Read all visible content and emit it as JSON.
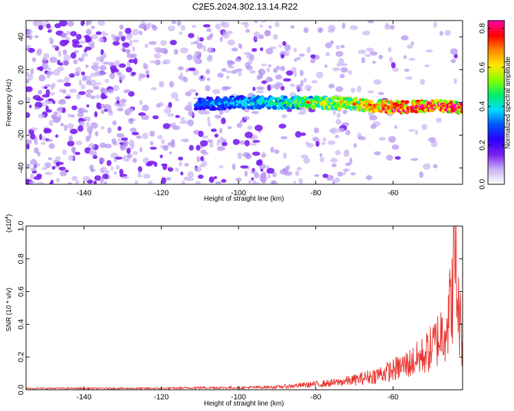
{
  "title": "C2E5.2024.302.13.14.R22",
  "chart_data": [
    {
      "type": "heatmap",
      "xlabel": "Height of straight line (km)",
      "ylabel": "Frequency (Hz)",
      "xlim": [
        -155,
        -42
      ],
      "ylim": [
        -50,
        50
      ],
      "xticks": [
        -140,
        -120,
        -100,
        -80,
        -60
      ],
      "yticks": [
        -40,
        -20,
        0,
        20,
        40
      ],
      "colorbar": {
        "label": "Normalized spectral amplitude",
        "range": [
          0,
          0.84
        ],
        "ticks": [
          0.0,
          0.2,
          0.4,
          0.6,
          0.8
        ],
        "colormap": [
          "#ffffff",
          "#c9b3f5",
          "#7a1ff0",
          "#2a00ff",
          "#0055ff",
          "#00ddff",
          "#00ee66",
          "#88ff00",
          "#ffe600",
          "#ff8800",
          "#ff0000",
          "#ff00aa"
        ]
      },
      "ridge": {
        "description_points": [
          {
            "x": -110,
            "y": -1,
            "level": 0.15
          },
          {
            "x": -100,
            "y": 0,
            "level": 0.22
          },
          {
            "x": -90,
            "y": 0,
            "level": 0.3
          },
          {
            "x": -80,
            "y": 0,
            "level": 0.45
          },
          {
            "x": -70,
            "y": -1,
            "level": 0.55
          },
          {
            "x": -60,
            "y": -3,
            "level": 0.7
          },
          {
            "x": -50,
            "y": -2,
            "level": 0.8
          },
          {
            "x": -43,
            "y": -3,
            "level": 0.75
          }
        ]
      }
    },
    {
      "type": "line",
      "xlabel": "Height of straight line (km)",
      "ylabel": "SNR (10 * v/v)",
      "y_multiplier": "(x10",
      "y_multiplier_exp": "4",
      "y_multiplier_close": ")",
      "xlim": [
        -155,
        -42
      ],
      "ylim": [
        0,
        1.0
      ],
      "xticks": [
        -140,
        -120,
        -100,
        -80,
        -60
      ],
      "yticks": [
        0.0,
        0.2,
        0.4,
        0.6,
        0.8,
        1.0
      ],
      "series": [
        {
          "color": "#e8342f",
          "x": [
            -155,
            -140,
            -120,
            -110,
            -100,
            -90,
            -85,
            -80,
            -75,
            -70,
            -65,
            -60,
            -55,
            -52,
            -50,
            -48,
            -46,
            -45,
            -44,
            -43,
            -42
          ],
          "y": [
            0.01,
            0.01,
            0.01,
            0.015,
            0.015,
            0.02,
            0.03,
            0.04,
            0.05,
            0.07,
            0.1,
            0.14,
            0.2,
            0.25,
            0.3,
            0.38,
            0.5,
            0.6,
            1.0,
            0.55,
            0.35
          ]
        }
      ]
    }
  ]
}
